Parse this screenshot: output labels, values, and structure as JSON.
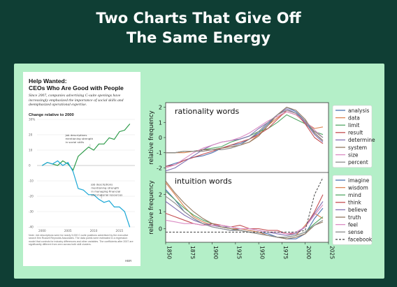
{
  "headline_line1": "Two Charts That Give Off",
  "headline_line2": "The Same Energy",
  "colors": {
    "background": "#0f3e34",
    "panel": "#b4efc8",
    "green": "#2e9b4a",
    "blue": "#1da8d6"
  },
  "hbr": {
    "title_line1": "Help Wanted:",
    "title_line2": "CEOs Who Are Good with People",
    "lede": "Since 2007, companies advertising C-suite openings have increasingly emphasized the importance of social skills and deemphasized operational expertise.",
    "subtitle": "Change relative to 2000",
    "note": "Note: Job descriptions were for nearly 5,000 C-suite positions advertised by the executive search firm Russell Reynolds Associates. The data points were estimated in a regression model that controls for industry differences and other variables. The coefficients after 2007 are significantly different from zero across both skill clusters.",
    "logo": "HBR"
  },
  "chart_data": [
    {
      "type": "line",
      "title": "Help Wanted: CEOs Who Are Good with People",
      "ylabel": "Change relative to 2000",
      "ylim": [
        -40,
        30
      ],
      "yticks": [
        "30%",
        "20",
        "10",
        "0",
        "-10",
        "-20",
        "-30",
        "-40"
      ],
      "yticks_values": [
        30,
        20,
        10,
        0,
        -10,
        -20,
        -30,
        -40
      ],
      "xticks": [
        "2000",
        "2005",
        "2010",
        "2015"
      ],
      "xticks_values": [
        2000,
        2005,
        2010,
        2015
      ],
      "xlim": [
        1999,
        2018
      ],
      "x": [
        2000,
        2001,
        2002,
        2003,
        2004,
        2005,
        2006,
        2007,
        2008,
        2009,
        2010,
        2011,
        2012,
        2013,
        2014,
        2015,
        2016,
        2017
      ],
      "series": [
        {
          "name": "Job descriptions mentioning strength in social skills",
          "color": "#2e9b4a",
          "values": [
            0,
            2,
            1,
            0,
            3,
            1,
            -3,
            6,
            9,
            12,
            10,
            14,
            14,
            18,
            17,
            22,
            23,
            27
          ]
        },
        {
          "name": "Job descriptions mentioning strength in managing financial and material resources",
          "color": "#1da8d6",
          "values": [
            0,
            2,
            1,
            3,
            0,
            2,
            -4,
            -15,
            -16,
            -19,
            -19,
            -22,
            -24,
            -23,
            -27,
            -27,
            -30,
            -40
          ]
        }
      ],
      "annotations": [
        {
          "lines": [
            "Job descriptions",
            "mentioning strength",
            "in social skills"
          ]
        },
        {
          "lines": [
            "Job descriptions",
            "mentioning strength",
            "in managing financial",
            "and material resources"
          ]
        }
      ]
    },
    {
      "type": "line",
      "title": "rationality words",
      "ylabel": "relative frequency",
      "xlim": [
        1850,
        2025
      ],
      "ylim": [
        -2.3,
        2.3
      ],
      "yticks": [
        -2,
        -1,
        0,
        1,
        2
      ],
      "x": [
        1850,
        1860,
        1870,
        1880,
        1890,
        1900,
        1910,
        1920,
        1930,
        1940,
        1950,
        1960,
        1970,
        1980,
        1990,
        2000,
        2010,
        2019
      ],
      "series": [
        {
          "name": "analysis",
          "color": "#4c72b0",
          "values": [
            -1.9,
            -1.7,
            -1.5,
            -1.3,
            -1.2,
            -1.0,
            -0.7,
            -0.5,
            -0.4,
            -0.1,
            0.3,
            0.9,
            1.5,
            2.0,
            1.7,
            1.1,
            0.3,
            -0.2
          ]
        },
        {
          "name": "data",
          "color": "#dd8452",
          "values": [
            -1.0,
            -1.0,
            -1.0,
            -0.9,
            -0.9,
            -0.8,
            -0.7,
            -0.6,
            -0.5,
            -0.3,
            0.2,
            0.8,
            1.3,
            1.7,
            1.5,
            1.0,
            0.6,
            0.7
          ]
        },
        {
          "name": "limit",
          "color": "#55a868",
          "values": [
            -1.0,
            -1.0,
            -0.9,
            -0.9,
            -0.8,
            -0.7,
            -0.6,
            -0.3,
            -0.1,
            0.1,
            0.4,
            0.6,
            1.0,
            1.5,
            1.2,
            0.9,
            0.4,
            0.2
          ]
        },
        {
          "name": "result",
          "color": "#c44e52",
          "values": [
            -1.9,
            -1.8,
            -1.5,
            -1.3,
            -1.1,
            -0.9,
            -0.7,
            -0.5,
            -0.3,
            -0.1,
            0.2,
            0.6,
            1.2,
            1.8,
            1.6,
            0.9,
            0.0,
            -0.4
          ]
        },
        {
          "name": "determine",
          "color": "#8172b3",
          "values": [
            -2.2,
            -2.0,
            -1.6,
            -1.2,
            -0.8,
            -0.5,
            -0.3,
            -0.2,
            -0.1,
            0.1,
            0.6,
            1.0,
            1.5,
            1.9,
            1.6,
            1.0,
            0.2,
            -0.3
          ]
        },
        {
          "name": "system",
          "color": "#937860",
          "values": [
            -1.0,
            -1.0,
            -0.9,
            -0.9,
            -0.8,
            -0.8,
            -0.7,
            -0.6,
            -0.5,
            -0.3,
            0.1,
            0.8,
            1.5,
            2.0,
            1.8,
            1.2,
            0.3,
            -0.2
          ]
        },
        {
          "name": "size",
          "color": "#da8bc3",
          "values": [
            -2.0,
            -1.8,
            -1.4,
            -1.0,
            -0.7,
            -0.5,
            -0.3,
            -0.2,
            0.0,
            0.3,
            0.7,
            1.1,
            1.4,
            1.7,
            1.5,
            1.1,
            0.5,
            0.0
          ]
        },
        {
          "name": "percent",
          "color": "#8c8c8c",
          "values": [
            -1.0,
            -1.0,
            -0.9,
            -0.9,
            -0.9,
            -0.8,
            -0.8,
            -0.7,
            -0.5,
            -0.1,
            0.4,
            1.0,
            1.5,
            1.8,
            1.6,
            1.1,
            0.4,
            0.0
          ]
        }
      ]
    },
    {
      "type": "line",
      "title": "intuition words",
      "ylabel": "relative frequency",
      "xlabel": "",
      "xlim": [
        1850,
        2025
      ],
      "ylim": [
        -0.8,
        3.3
      ],
      "yticks": [
        0,
        1,
        2
      ],
      "xticks": [
        1850,
        1875,
        1900,
        1925,
        1950,
        1975,
        2000,
        2025
      ],
      "x": [
        1850,
        1860,
        1870,
        1880,
        1890,
        1900,
        1910,
        1920,
        1930,
        1940,
        1950,
        1960,
        1970,
        1980,
        1990,
        2000,
        2010,
        2019
      ],
      "series": [
        {
          "name": "imagine",
          "color": "#4c72b0",
          "values": [
            2.3,
            1.7,
            1.0,
            0.6,
            0.3,
            0.1,
            0.0,
            -0.1,
            0.0,
            -0.1,
            -0.2,
            -0.3,
            -0.5,
            -0.6,
            -0.6,
            -0.3,
            0.6,
            1.2
          ]
        },
        {
          "name": "wisdom",
          "color": "#dd8452",
          "values": [
            2.7,
            2.0,
            1.3,
            0.7,
            0.4,
            0.2,
            0.1,
            0.0,
            0.0,
            -0.1,
            -0.2,
            -0.4,
            -0.5,
            -0.5,
            -0.4,
            0.2,
            0.9,
            0.6
          ]
        },
        {
          "name": "mind",
          "color": "#55a868",
          "values": [
            2.2,
            1.7,
            1.2,
            0.8,
            0.5,
            0.3,
            0.1,
            0.0,
            -0.1,
            -0.2,
            -0.3,
            -0.4,
            -0.5,
            -0.5,
            -0.4,
            -0.2,
            0.3,
            0.7
          ]
        },
        {
          "name": "think",
          "color": "#c44e52",
          "values": [
            0.9,
            0.7,
            0.5,
            0.3,
            0.2,
            0.3,
            0.2,
            0.1,
            0.2,
            0.0,
            0.0,
            -0.1,
            -0.1,
            -0.3,
            -0.3,
            0.1,
            1.0,
            2.0
          ]
        },
        {
          "name": "believe",
          "color": "#8172b3",
          "values": [
            1.6,
            1.2,
            0.8,
            0.5,
            0.3,
            0.2,
            0.1,
            0.1,
            0.0,
            0.0,
            -0.1,
            -0.2,
            -0.3,
            -0.4,
            -0.3,
            0.1,
            0.9,
            1.6
          ]
        },
        {
          "name": "truth",
          "color": "#937860",
          "values": [
            2.8,
            2.1,
            1.5,
            1.0,
            0.6,
            0.3,
            0.1,
            0.0,
            -0.1,
            -0.2,
            -0.3,
            -0.4,
            -0.5,
            -0.6,
            -0.5,
            -0.3,
            0.2,
            0.4
          ]
        },
        {
          "name": "feel",
          "color": "#da8bc3",
          "values": [
            0.5,
            0.4,
            0.3,
            0.3,
            0.2,
            0.2,
            0.2,
            0.1,
            0.0,
            0.0,
            -0.1,
            -0.2,
            -0.2,
            -0.3,
            -0.2,
            0.1,
            0.8,
            1.4
          ]
        },
        {
          "name": "sense",
          "color": "#8c8c8c",
          "values": [
            1.9,
            1.5,
            1.0,
            0.6,
            0.3,
            0.1,
            0.0,
            -0.1,
            -0.1,
            -0.2,
            -0.3,
            -0.4,
            -0.5,
            -0.5,
            -0.4,
            -0.2,
            0.2,
            0.5
          ]
        },
        {
          "name": "facebook",
          "color": "#555555",
          "dashed": true,
          "values": [
            -0.2,
            -0.2,
            -0.2,
            -0.2,
            -0.2,
            -0.2,
            -0.2,
            -0.2,
            -0.2,
            -0.2,
            -0.2,
            -0.2,
            -0.2,
            -0.2,
            -0.2,
            -0.1,
            2.0,
            3.0
          ]
        }
      ]
    }
  ]
}
